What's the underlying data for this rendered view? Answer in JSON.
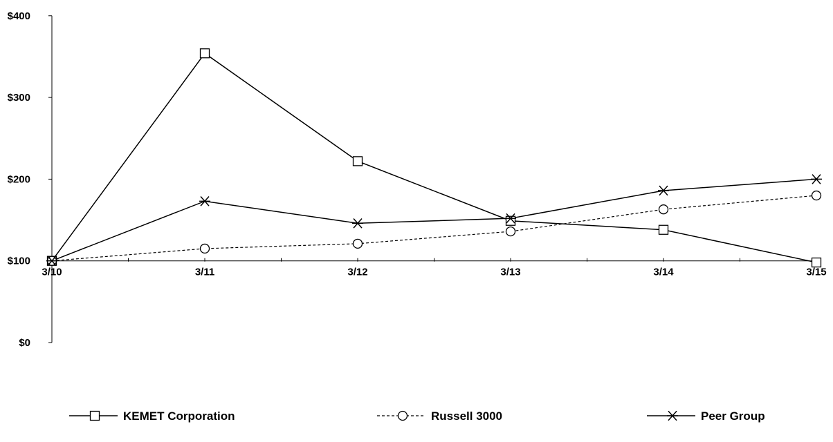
{
  "chart_data": {
    "type": "line",
    "categories": [
      "3/10",
      "3/11",
      "3/12",
      "3/13",
      "3/14",
      "3/15"
    ],
    "y_tick_labels": [
      "$0",
      "$100",
      "$200",
      "$300",
      "$400"
    ],
    "y_ticks": [
      0,
      100,
      200,
      300,
      400
    ],
    "ylim": [
      0,
      400
    ],
    "grid": false,
    "legend_position": "bottom",
    "series": [
      {
        "name": "KEMET Corporation",
        "values": [
          100,
          354,
          222,
          149,
          138,
          98
        ],
        "marker": "square",
        "line_style": "solid",
        "color": "#000000"
      },
      {
        "name": "Russell 3000",
        "values": [
          100,
          115,
          121,
          136,
          163,
          180
        ],
        "marker": "circle",
        "line_style": "dashed",
        "color": "#000000"
      },
      {
        "name": "Peer Group",
        "values": [
          100,
          173,
          146,
          152,
          186,
          200
        ],
        "marker": "star",
        "line_style": "solid",
        "color": "#000000"
      }
    ]
  }
}
